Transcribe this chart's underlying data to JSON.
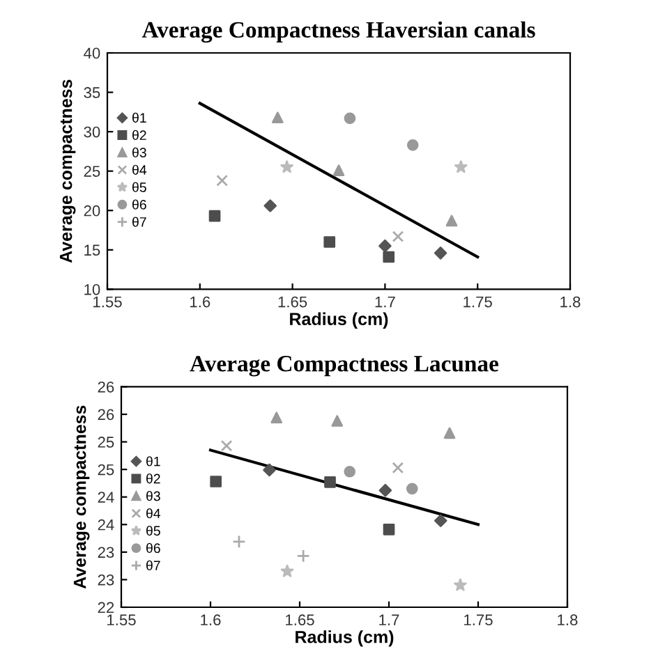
{
  "chart_data": [
    {
      "type": "scatter",
      "title": "Average Compactness Haversian canals",
      "xlabel": "Radius (cm)",
      "ylabel": "Average compactness",
      "xlim": [
        1.55,
        1.8
      ],
      "xticks": [
        1.55,
        1.6,
        1.65,
        1.7,
        1.75,
        1.8
      ],
      "ylim": [
        10,
        40
      ],
      "yticks": [
        10,
        15,
        20,
        25,
        30,
        35,
        40
      ],
      "grid": false,
      "legend": "left",
      "series": [
        {
          "name": "θ1",
          "color": "#555555",
          "marker": "diamond",
          "x": [
            1.638,
            1.7,
            1.73
          ],
          "values": [
            20.6,
            15.5,
            14.6
          ]
        },
        {
          "name": "θ2",
          "color": "#4d4d4d",
          "marker": "square",
          "x": [
            1.608,
            1.67,
            1.702
          ],
          "values": [
            19.3,
            16.0,
            14.1
          ]
        },
        {
          "name": "θ3",
          "color": "#999999",
          "marker": "triangle",
          "x": [
            1.642,
            1.675,
            1.736
          ],
          "values": [
            31.8,
            25.1,
            18.7
          ]
        },
        {
          "name": "θ4",
          "color": "#aaaaaa",
          "marker": "cross",
          "x": [
            1.612,
            1.707
          ],
          "values": [
            23.8,
            16.7
          ]
        },
        {
          "name": "θ5",
          "color": "#bbbbbb",
          "marker": "star",
          "x": [
            1.647,
            1.741
          ],
          "values": [
            25.5,
            25.5
          ]
        },
        {
          "name": "θ6",
          "color": "#999999",
          "marker": "circle",
          "x": [
            1.681,
            1.715
          ],
          "values": [
            31.7,
            28.3
          ]
        },
        {
          "name": "θ7",
          "color": "#aaaaaa",
          "marker": "plus"
        },
        {
          "type": "line",
          "color": "#000000",
          "marker": "none",
          "x": [
            1.6,
            1.75
          ],
          "values": [
            33.6,
            14.1
          ]
        }
      ]
    },
    {
      "type": "scatter",
      "title": "Average Compactness Lacunae",
      "xlabel": "Radius (cm)",
      "ylabel": "Average compactness",
      "xlim": [
        1.55,
        1.8
      ],
      "xticks": [
        1.55,
        1.6,
        1.65,
        1.7,
        1.75,
        1.8
      ],
      "ylim": [
        22,
        26
      ],
      "yticks": [
        22,
        {
          "value": 22.5,
          "label": "23"
        },
        23,
        {
          "value": 23.5,
          "label": "24"
        },
        24,
        {
          "value": 24.5,
          "label": "25"
        },
        25,
        {
          "value": 25.5,
          "label": "26"
        },
        26
      ],
      "grid": false,
      "legend": "left",
      "series": [
        {
          "name": "θ1",
          "color": "#555555",
          "marker": "diamond",
          "x": [
            1.633,
            1.698,
            1.729
          ],
          "values": [
            24.49,
            24.12,
            23.57
          ]
        },
        {
          "name": "θ2",
          "color": "#4d4d4d",
          "marker": "square",
          "x": [
            1.603,
            1.667,
            1.7
          ],
          "values": [
            24.28,
            24.27,
            23.41
          ]
        },
        {
          "name": "θ3",
          "color": "#999999",
          "marker": "triangle",
          "x": [
            1.637,
            1.671,
            1.734
          ],
          "values": [
            25.44,
            25.38,
            25.16
          ]
        },
        {
          "name": "θ4",
          "color": "#aaaaaa",
          "marker": "cross",
          "x": [
            1.609,
            1.705
          ],
          "values": [
            24.93,
            24.53
          ]
        },
        {
          "name": "θ5",
          "color": "#bbbbbb",
          "marker": "star",
          "x": [
            1.643,
            1.74
          ],
          "values": [
            22.65,
            22.4
          ]
        },
        {
          "name": "θ6",
          "color": "#999999",
          "marker": "circle",
          "x": [
            1.678,
            1.713
          ],
          "values": [
            24.46,
            24.15
          ]
        },
        {
          "name": "θ7",
          "color": "#aaaaaa",
          "marker": "plus",
          "x": [
            1.616,
            1.652
          ],
          "values": [
            23.19,
            22.93
          ]
        },
        {
          "type": "line",
          "color": "#000000",
          "marker": "none",
          "x": [
            1.6,
            1.75
          ],
          "values": [
            24.85,
            23.5
          ]
        }
      ]
    }
  ]
}
